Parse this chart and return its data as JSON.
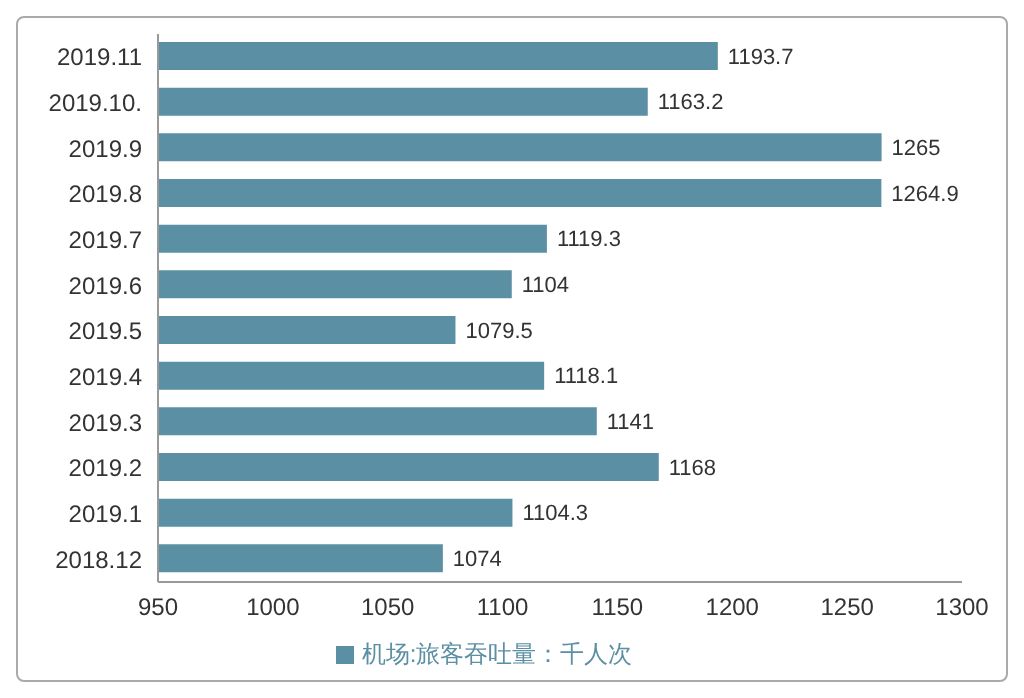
{
  "chart_data": {
    "type": "bar",
    "orientation": "horizontal",
    "categories": [
      "2019.11",
      "2019.10.",
      "2019.9",
      "2019.8",
      "2019.7",
      "2019.6",
      "2019.5",
      "2019.4",
      "2019.3",
      "2019.2",
      "2019.1",
      "2018.12"
    ],
    "series": [
      {
        "name": "机场:旅客吞吐量：千人次",
        "color": "#5b8fa3",
        "values": [
          1193.7,
          1163.2,
          1265,
          1264.9,
          1119.3,
          1104,
          1079.5,
          1118.1,
          1141,
          1168,
          1104.3,
          1074
        ]
      }
    ],
    "xlim": [
      950,
      1300
    ],
    "xticks": [
      950,
      1000,
      1050,
      1100,
      1150,
      1200,
      1250,
      1300
    ],
    "data_labels": true,
    "legend": "bottom",
    "grid": false
  }
}
